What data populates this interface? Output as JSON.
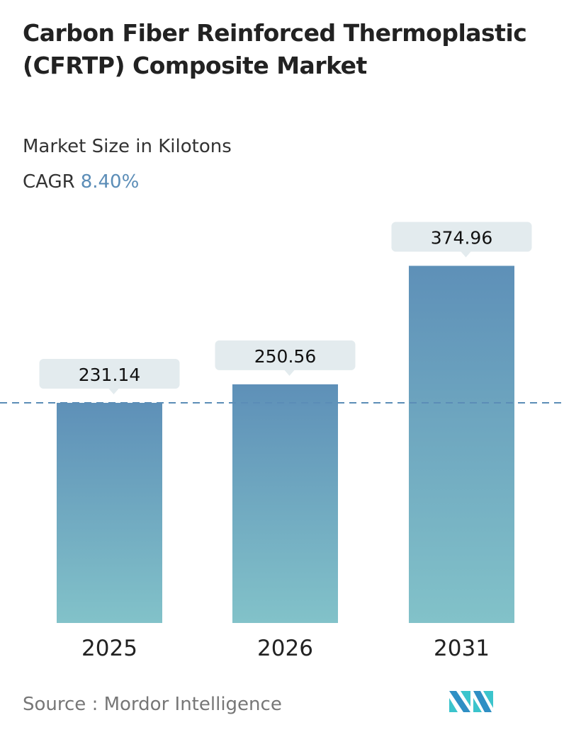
{
  "header": {
    "title": "Carbon Fiber Reinforced Thermoplastic (CFRTP) Composite Market",
    "subtitle": "Market Size in Kilotons",
    "cagr_label": "CAGR",
    "cagr_value": "8.40%"
  },
  "source": {
    "label": "Source :",
    "name": "Mordor Intelligence"
  },
  "colors": {
    "bar_top": "#5e90b8",
    "bar_bottom": "#82c2c9",
    "bubble": "#e3ebee",
    "dash": "#5b8db7"
  },
  "chart_data": {
    "type": "bar",
    "categories": [
      "2025",
      "2026",
      "2031"
    ],
    "values": [
      231.14,
      250.56,
      374.96
    ],
    "value_labels": [
      "231.14",
      "250.56",
      "374.96"
    ],
    "title": "Carbon Fiber Reinforced Thermoplastic (CFRTP) Composite Market",
    "ylabel": "Market Size in Kilotons",
    "ylim": [
      0,
      380
    ],
    "reference_line": 231.14,
    "grid": false
  }
}
